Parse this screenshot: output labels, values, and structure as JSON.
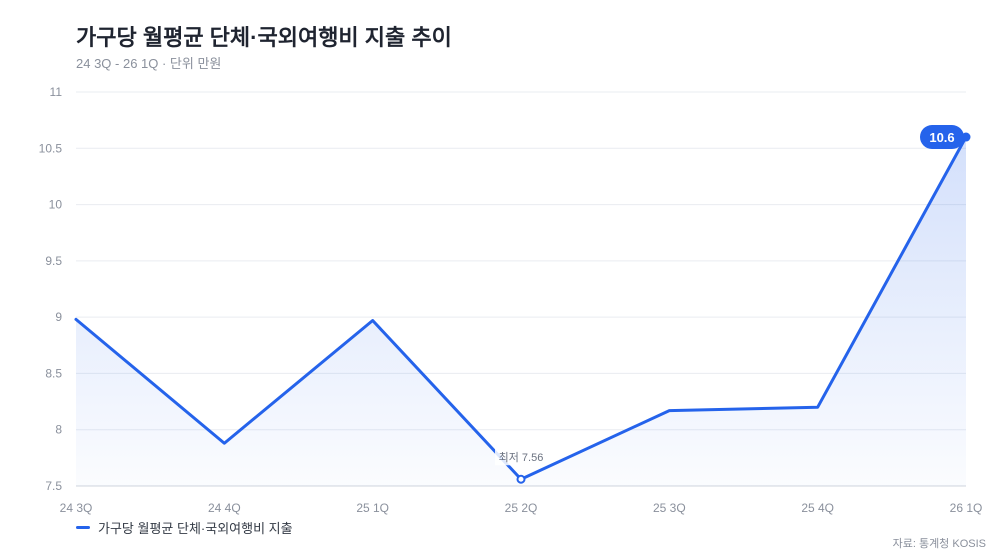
{
  "header": {
    "title": "가구당 월평균 단체·국외여행비 지출 추이",
    "subtitle": "24 3Q - 26 1Q · 단위 만원"
  },
  "legend": {
    "label": "가구당 월평균 단체·국외여행비 지출"
  },
  "footer": {
    "source": "자료: 통계청 KOSIS"
  },
  "colors": {
    "line": "#2563eb",
    "grid": "#e9ecf1",
    "tick": "#8a909c"
  },
  "chart_data": {
    "type": "area",
    "categories": [
      "24 3Q",
      "24 4Q",
      "25 1Q",
      "25 2Q",
      "25 3Q",
      "25 4Q",
      "26 1Q"
    ],
    "series": [
      {
        "name": "가구당 월평균 단체·국외여행비 지출",
        "values": [
          8.98,
          7.88,
          8.97,
          7.56,
          8.17,
          8.2,
          10.6
        ]
      }
    ],
    "ylim": [
      7.5,
      11
    ],
    "yticks": [
      "7.5",
      "8",
      "8.5",
      "9",
      "9.5",
      "10",
      "10.5",
      "11"
    ],
    "grid": true,
    "annotations": {
      "min_label": "최저 7.56",
      "last_label": "10.6"
    }
  }
}
